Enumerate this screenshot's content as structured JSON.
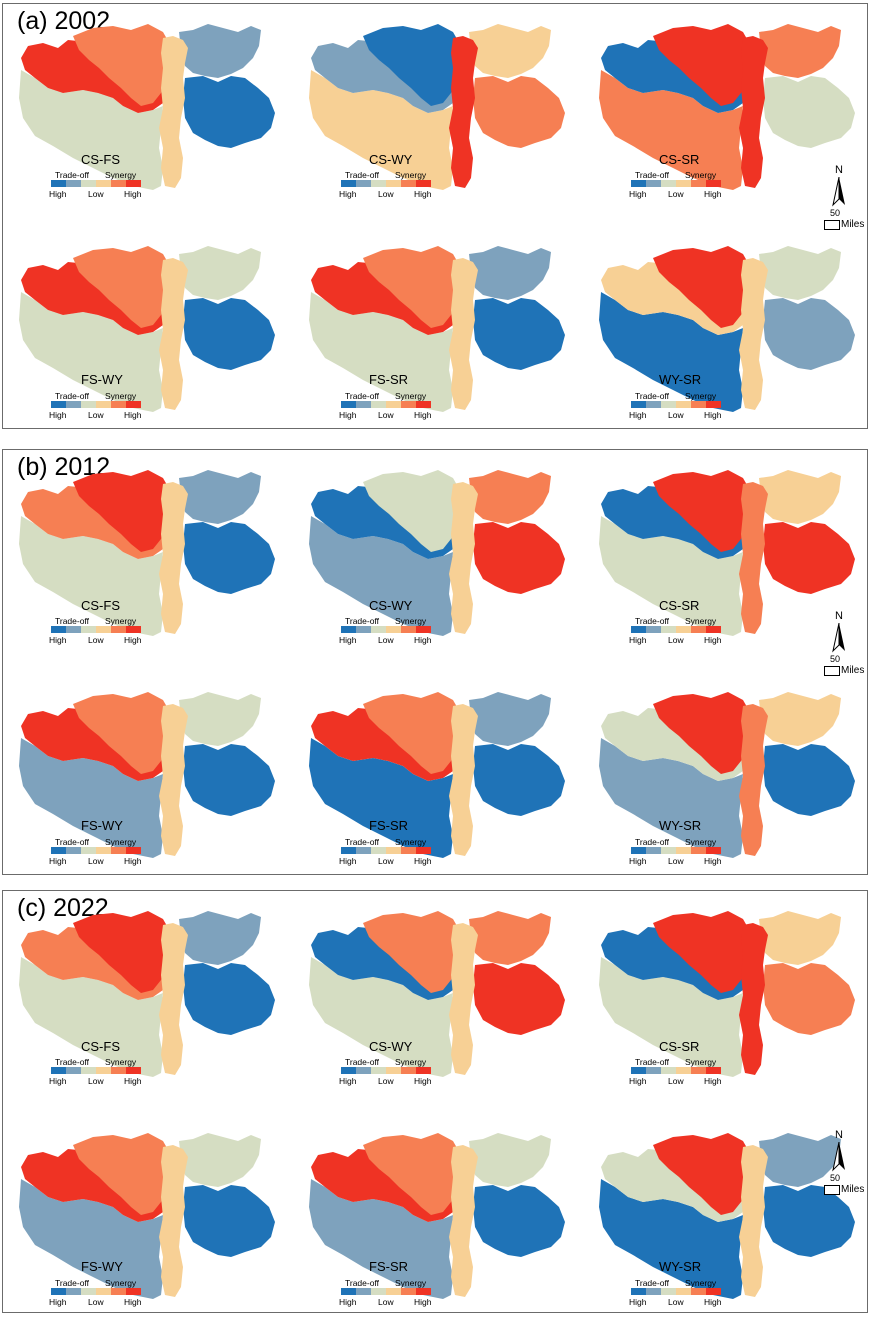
{
  "colors": {
    "classes": [
      "#1f73b7",
      "#7ea2bd",
      "#d5ddc2",
      "#f7d095",
      "#f67f53",
      "#ef3324"
    ],
    "border": "#6b6b6b"
  },
  "legend": {
    "tradeoff": "Trade-off",
    "synergy": "Synergy",
    "high_left": "High",
    "low": "Low",
    "high_right": "High"
  },
  "north_arrow": {
    "letter": "N",
    "scale_value": "50",
    "scale_unit": "Miles"
  },
  "panels": [
    {
      "title": "(a) 2002",
      "maps": [
        {
          "label": "CS-FS",
          "zones": [
            5,
            4,
            3,
            1,
            0,
            2
          ]
        },
        {
          "label": "CS-WY",
          "zones": [
            1,
            0,
            5,
            3,
            4,
            3
          ]
        },
        {
          "label": "CS-SR",
          "zones": [
            0,
            5,
            5,
            4,
            2,
            4
          ]
        },
        {
          "label": "FS-WY",
          "zones": [
            5,
            4,
            3,
            2,
            0,
            2
          ]
        },
        {
          "label": "FS-SR",
          "zones": [
            5,
            4,
            3,
            1,
            0,
            2
          ]
        },
        {
          "label": "WY-SR",
          "zones": [
            3,
            5,
            3,
            2,
            1,
            0
          ]
        }
      ]
    },
    {
      "title": "(b) 2012",
      "maps": [
        {
          "label": "CS-FS",
          "zones": [
            4,
            5,
            3,
            1,
            0,
            2
          ]
        },
        {
          "label": "CS-WY",
          "zones": [
            0,
            2,
            3,
            4,
            5,
            1
          ]
        },
        {
          "label": "CS-SR",
          "zones": [
            0,
            5,
            4,
            3,
            5,
            2
          ]
        },
        {
          "label": "FS-WY",
          "zones": [
            5,
            4,
            3,
            2,
            0,
            1
          ]
        },
        {
          "label": "FS-SR",
          "zones": [
            5,
            4,
            3,
            1,
            0,
            0
          ]
        },
        {
          "label": "WY-SR",
          "zones": [
            2,
            5,
            4,
            3,
            0,
            1
          ]
        }
      ]
    },
    {
      "title": "(c) 2022",
      "maps": [
        {
          "label": "CS-FS",
          "zones": [
            4,
            5,
            3,
            1,
            0,
            2
          ]
        },
        {
          "label": "CS-WY",
          "zones": [
            0,
            4,
            3,
            4,
            5,
            2
          ]
        },
        {
          "label": "CS-SR",
          "zones": [
            0,
            5,
            5,
            3,
            4,
            2
          ]
        },
        {
          "label": "FS-WY",
          "zones": [
            5,
            4,
            3,
            2,
            0,
            1
          ]
        },
        {
          "label": "FS-SR",
          "zones": [
            5,
            4,
            3,
            2,
            0,
            1
          ]
        },
        {
          "label": "WY-SR",
          "zones": [
            2,
            5,
            3,
            1,
            0,
            0
          ]
        }
      ]
    }
  ]
}
